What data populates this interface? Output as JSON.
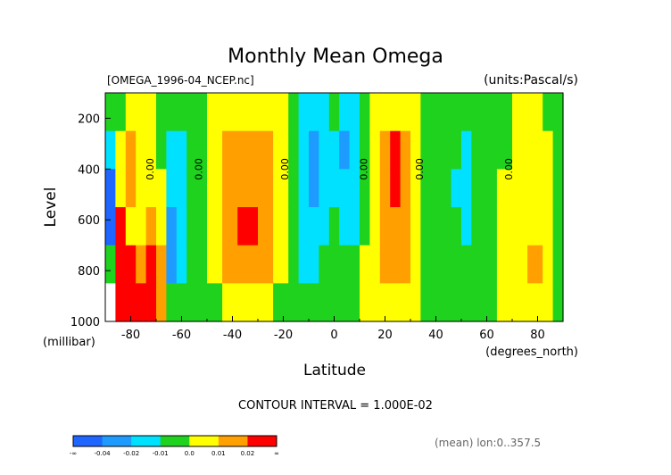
{
  "chart_data": {
    "type": "heatmap",
    "title": "Monthly Mean Omega",
    "file_label": "[OMEGA_1996-04_NCEP.nc]",
    "units_label": "(units:Pascal/s)",
    "xlabel": "Latitude",
    "xunits": "(degrees_north)",
    "ylabel": "Level",
    "yunits": "(millibar)",
    "xlim": [
      -90,
      90
    ],
    "ylim": [
      1000,
      100
    ],
    "xticks": [
      -80,
      -60,
      -40,
      -20,
      0,
      20,
      40,
      60,
      80
    ],
    "xtick_labels": [
      "-80",
      "-60",
      "-40",
      "-20",
      "0",
      "20",
      "40",
      "60",
      "80"
    ],
    "yticks": [
      200,
      400,
      600,
      800,
      1000
    ],
    "ytick_labels": [
      "200",
      "400",
      "600",
      "800",
      "1000"
    ],
    "contour_interval_text": "CONTOUR INTERVAL = 1.000E-02",
    "footnote": "(mean) lon:0..357.5",
    "zero_contour_label": "0.00",
    "zero_contour_lats": [
      -71,
      -52,
      -18,
      13,
      35,
      70
    ],
    "colorbar": {
      "colors": [
        "#1e66ff",
        "#1e9bff",
        "#00e1ff",
        "#1ed21e",
        "#ffff00",
        "#ffa000",
        "#ff0000"
      ],
      "labels": [
        "-∞",
        "-0.04",
        "-0.02",
        "-0.01",
        "0.0",
        "0.01",
        "0.02",
        "∞"
      ]
    },
    "bands": [
      {
        "x": [
          -90,
          -86
        ],
        "colors": [
          "#1ed21e",
          "#00e1ff",
          "#1e66ff",
          "#1e66ff",
          "#1ed21e",
          "#ffffff"
        ]
      },
      {
        "x": [
          -86,
          -82
        ],
        "colors": [
          "#1ed21e",
          "#ffff00",
          "#ffff00",
          "#ff0000",
          "#ff0000",
          "#ff0000"
        ]
      },
      {
        "x": [
          -82,
          -78
        ],
        "colors": [
          "#ffff00",
          "#ffa000",
          "#ffa000",
          "#ffff00",
          "#ff0000",
          "#ff0000"
        ]
      },
      {
        "x": [
          -78,
          -74
        ],
        "colors": [
          "#ffff00",
          "#ffff00",
          "#ffff00",
          "#ffff00",
          "#ffa000",
          "#ff0000"
        ]
      },
      {
        "x": [
          -74,
          -70
        ],
        "colors": [
          "#ffff00",
          "#ffff00",
          "#ffff00",
          "#ffa000",
          "#ff0000",
          "#ff0000"
        ]
      },
      {
        "x": [
          -70,
          -66
        ],
        "colors": [
          "#1ed21e",
          "#1ed21e",
          "#ffff00",
          "#ffff00",
          "#ffa000",
          "#ffa000"
        ]
      },
      {
        "x": [
          -66,
          -62
        ],
        "colors": [
          "#1ed21e",
          "#00e1ff",
          "#00e1ff",
          "#1e9bff",
          "#1e9bff",
          "#1ed21e"
        ]
      },
      {
        "x": [
          -62,
          -58
        ],
        "colors": [
          "#1ed21e",
          "#00e1ff",
          "#00e1ff",
          "#00e1ff",
          "#00e1ff",
          "#1ed21e"
        ]
      },
      {
        "x": [
          -58,
          -50
        ],
        "colors": [
          "#1ed21e",
          "#1ed21e",
          "#1ed21e",
          "#1ed21e",
          "#1ed21e",
          "#1ed21e"
        ]
      },
      {
        "x": [
          -50,
          -44
        ],
        "colors": [
          "#ffff00",
          "#ffff00",
          "#ffff00",
          "#ffff00",
          "#ffff00",
          "#1ed21e"
        ]
      },
      {
        "x": [
          -44,
          -38
        ],
        "colors": [
          "#ffff00",
          "#ffa000",
          "#ffa000",
          "#ffa000",
          "#ffa000",
          "#ffff00"
        ]
      },
      {
        "x": [
          -38,
          -30
        ],
        "colors": [
          "#ffff00",
          "#ffa000",
          "#ffa000",
          "#ff0000",
          "#ffa000",
          "#ffff00"
        ]
      },
      {
        "x": [
          -30,
          -24
        ],
        "colors": [
          "#ffff00",
          "#ffa000",
          "#ffa000",
          "#ffa000",
          "#ffa000",
          "#ffff00"
        ]
      },
      {
        "x": [
          -24,
          -18
        ],
        "colors": [
          "#ffff00",
          "#ffff00",
          "#ffff00",
          "#ffff00",
          "#ffff00",
          "#1ed21e"
        ]
      },
      {
        "x": [
          -18,
          -14
        ],
        "colors": [
          "#1ed21e",
          "#1ed21e",
          "#1ed21e",
          "#1ed21e",
          "#1ed21e",
          "#1ed21e"
        ]
      },
      {
        "x": [
          -14,
          -10
        ],
        "colors": [
          "#00e1ff",
          "#00e1ff",
          "#00e1ff",
          "#00e1ff",
          "#00e1ff",
          "#1ed21e"
        ]
      },
      {
        "x": [
          -10,
          -6
        ],
        "colors": [
          "#00e1ff",
          "#1e9bff",
          "#1e9bff",
          "#00e1ff",
          "#00e1ff",
          "#1ed21e"
        ]
      },
      {
        "x": [
          -6,
          -2
        ],
        "colors": [
          "#00e1ff",
          "#00e1ff",
          "#00e1ff",
          "#00e1ff",
          "#1ed21e",
          "#1ed21e"
        ]
      },
      {
        "x": [
          -2,
          2
        ],
        "colors": [
          "#1ed21e",
          "#00e1ff",
          "#00e1ff",
          "#1ed21e",
          "#1ed21e",
          "#1ed21e"
        ]
      },
      {
        "x": [
          2,
          6
        ],
        "colors": [
          "#00e1ff",
          "#1e9bff",
          "#00e1ff",
          "#00e1ff",
          "#1ed21e",
          "#1ed21e"
        ]
      },
      {
        "x": [
          6,
          10
        ],
        "colors": [
          "#00e1ff",
          "#00e1ff",
          "#00e1ff",
          "#00e1ff",
          "#1ed21e",
          "#1ed21e"
        ]
      },
      {
        "x": [
          10,
          14
        ],
        "colors": [
          "#1ed21e",
          "#1ed21e",
          "#1ed21e",
          "#1ed21e",
          "#ffff00",
          "#ffff00"
        ]
      },
      {
        "x": [
          14,
          18
        ],
        "colors": [
          "#ffff00",
          "#ffff00",
          "#ffff00",
          "#ffff00",
          "#ffff00",
          "#ffff00"
        ]
      },
      {
        "x": [
          18,
          22
        ],
        "colors": [
          "#ffff00",
          "#ffa000",
          "#ffa000",
          "#ffa000",
          "#ffa000",
          "#ffff00"
        ]
      },
      {
        "x": [
          22,
          26
        ],
        "colors": [
          "#ffff00",
          "#ff0000",
          "#ff0000",
          "#ffa000",
          "#ffa000",
          "#ffff00"
        ]
      },
      {
        "x": [
          26,
          30
        ],
        "colors": [
          "#ffff00",
          "#ffa000",
          "#ffa000",
          "#ffa000",
          "#ffa000",
          "#ffff00"
        ]
      },
      {
        "x": [
          30,
          34
        ],
        "colors": [
          "#ffff00",
          "#ffff00",
          "#ffff00",
          "#ffff00",
          "#ffff00",
          "#ffff00"
        ]
      },
      {
        "x": [
          34,
          46
        ],
        "colors": [
          "#1ed21e",
          "#1ed21e",
          "#1ed21e",
          "#1ed21e",
          "#1ed21e",
          "#1ed21e"
        ]
      },
      {
        "x": [
          46,
          50
        ],
        "colors": [
          "#1ed21e",
          "#1ed21e",
          "#00e1ff",
          "#1ed21e",
          "#1ed21e",
          "#1ed21e"
        ]
      },
      {
        "x": [
          50,
          54
        ],
        "colors": [
          "#1ed21e",
          "#00e1ff",
          "#00e1ff",
          "#00e1ff",
          "#1ed21e",
          "#1ed21e"
        ]
      },
      {
        "x": [
          54,
          64
        ],
        "colors": [
          "#1ed21e",
          "#1ed21e",
          "#1ed21e",
          "#1ed21e",
          "#1ed21e",
          "#1ed21e"
        ]
      },
      {
        "x": [
          64,
          70
        ],
        "colors": [
          "#1ed21e",
          "#1ed21e",
          "#ffff00",
          "#ffff00",
          "#ffff00",
          "#ffff00"
        ]
      },
      {
        "x": [
          70,
          76
        ],
        "colors": [
          "#ffff00",
          "#ffff00",
          "#ffff00",
          "#ffff00",
          "#ffff00",
          "#ffff00"
        ]
      },
      {
        "x": [
          76,
          82
        ],
        "colors": [
          "#ffff00",
          "#ffff00",
          "#ffff00",
          "#ffff00",
          "#ffa000",
          "#ffff00"
        ]
      },
      {
        "x": [
          82,
          86
        ],
        "colors": [
          "#1ed21e",
          "#ffff00",
          "#ffff00",
          "#ffff00",
          "#ffff00",
          "#ffff00"
        ]
      },
      {
        "x": [
          86,
          90
        ],
        "colors": [
          "#1ed21e",
          "#1ed21e",
          "#1ed21e",
          "#1ed21e",
          "#1ed21e",
          "#1ed21e"
        ]
      }
    ],
    "band_levels": [
      {
        "p": [
          100,
          250
        ]
      },
      {
        "p": [
          250,
          400
        ]
      },
      {
        "p": [
          400,
          550
        ]
      },
      {
        "p": [
          550,
          700
        ]
      },
      {
        "p": [
          700,
          850
        ]
      },
      {
        "p": [
          850,
          1000
        ]
      }
    ]
  }
}
